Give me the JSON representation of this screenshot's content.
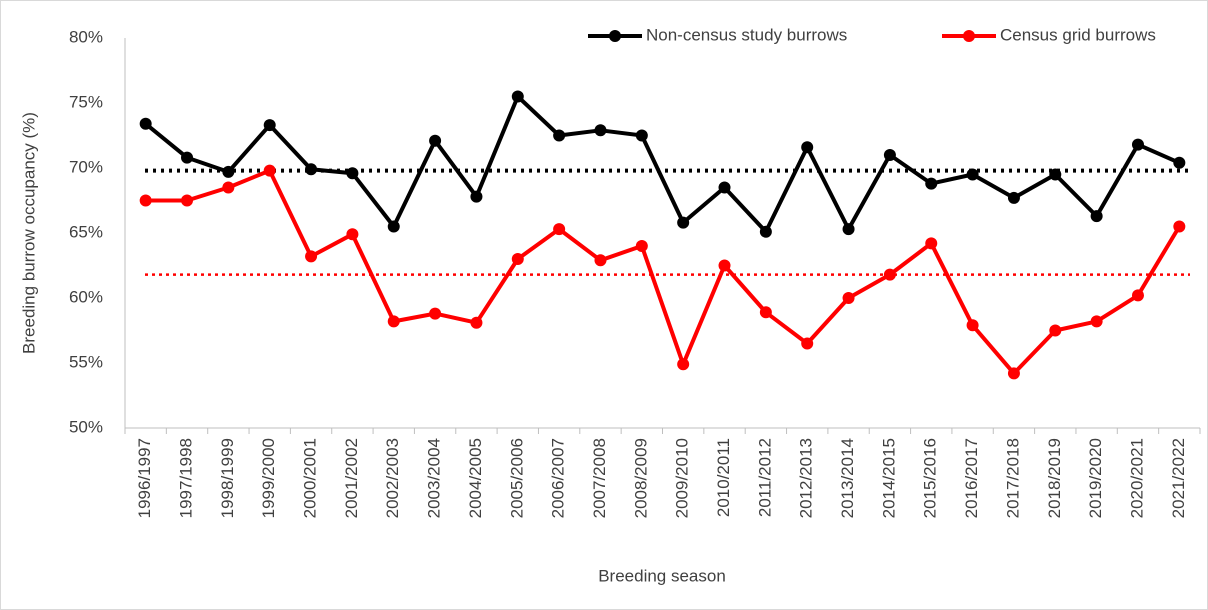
{
  "chart_data": {
    "type": "line",
    "x_label": "Breeding season",
    "y_label": "Breeding burrow occupancy (%)",
    "categories": [
      "1996/1997",
      "1997/1998",
      "1998/1999",
      "1999/2000",
      "2000/2001",
      "2001/2002",
      "2002/2003",
      "2003/2004",
      "2004/2005",
      "2005/2006",
      "2006/2007",
      "2007/2008",
      "2008/2009",
      "2009/2010",
      "2010/2011",
      "2011/2012",
      "2012/2013",
      "2013/2014",
      "2014/2015",
      "2015/2016",
      "2016/2017",
      "2017/2018",
      "2018/2019",
      "2019/2020",
      "2020/2021",
      "2021/2022"
    ],
    "series": [
      {
        "name": "Non-census study burrows",
        "color": "#000000",
        "values": [
          73.4,
          70.8,
          69.7,
          73.3,
          69.9,
          69.6,
          65.5,
          72.1,
          67.8,
          75.5,
          72.5,
          72.9,
          72.5,
          65.8,
          68.5,
          65.1,
          71.6,
          65.3,
          71.0,
          68.8,
          69.5,
          67.7,
          69.5,
          66.3,
          71.8,
          70.4
        ]
      },
      {
        "name": "Census grid burrows",
        "color": "#ff0000",
        "values": [
          67.5,
          67.5,
          68.5,
          69.8,
          63.2,
          64.9,
          58.2,
          58.8,
          58.1,
          63.0,
          65.3,
          62.9,
          64.0,
          54.9,
          62.5,
          58.9,
          56.5,
          60.0,
          61.8,
          64.2,
          57.9,
          54.2,
          57.5,
          58.2,
          60.2,
          65.5
        ]
      }
    ],
    "mean_lines": [
      {
        "value": 69.8,
        "color": "#000000"
      },
      {
        "value": 61.8,
        "color": "#ff0000"
      }
    ],
    "ylim": [
      50,
      80
    ],
    "yticks": [
      {
        "value": 50,
        "label": "50%"
      },
      {
        "value": 55,
        "label": "55%"
      },
      {
        "value": 60,
        "label": "60%"
      },
      {
        "value": 65,
        "label": "65%"
      },
      {
        "value": 70,
        "label": "70%"
      },
      {
        "value": 75,
        "label": "75%"
      },
      {
        "value": 80,
        "label": "80%"
      }
    ],
    "legend": "top-right",
    "grid": false
  }
}
